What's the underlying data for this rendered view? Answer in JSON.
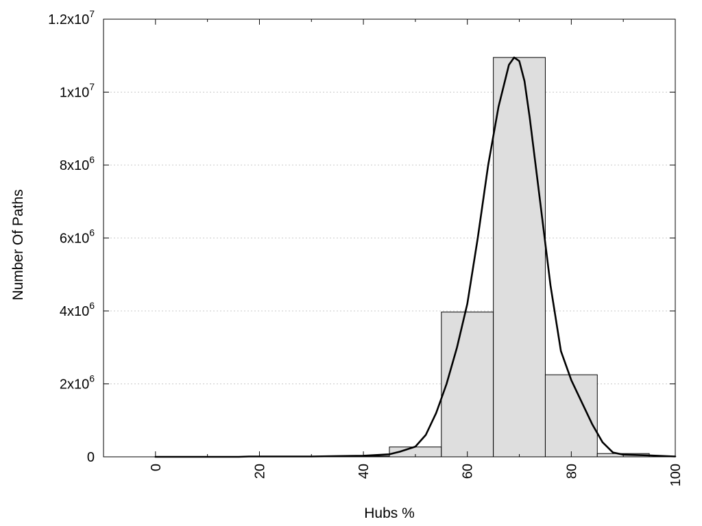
{
  "chart_data": {
    "type": "bar",
    "title": "",
    "xlabel": "Hubs %",
    "ylabel": "Number Of Paths",
    "xlim": [
      -10,
      100
    ],
    "ylim": [
      0,
      12000000
    ],
    "x_ticks": [
      0,
      20,
      40,
      60,
      80,
      100
    ],
    "y_ticks": [
      {
        "value": 0,
        "base": "0",
        "exp": ""
      },
      {
        "value": 2000000,
        "base": "2x10",
        "exp": "6"
      },
      {
        "value": 4000000,
        "base": "4x10",
        "exp": "6"
      },
      {
        "value": 6000000,
        "base": "6x10",
        "exp": "6"
      },
      {
        "value": 8000000,
        "base": "8x10",
        "exp": "6"
      },
      {
        "value": 10000000,
        "base": "1x10",
        "exp": "7"
      },
      {
        "value": 12000000,
        "base": "1.2x10",
        "exp": "7"
      }
    ],
    "grid": "horizontal dotted",
    "colors": {
      "bar_fill": "#dedede",
      "bar_stroke": "#000000",
      "curve": "#000000"
    },
    "bars": [
      {
        "start": 0,
        "end": 10,
        "value": 5000
      },
      {
        "start": 10,
        "end": 20,
        "value": 5000
      },
      {
        "start": 20,
        "end": 30,
        "value": 15000
      },
      {
        "start": 30,
        "end": 40,
        "value": 15000
      },
      {
        "start": 40,
        "end": 45,
        "value": 20000
      },
      {
        "start": 45,
        "end": 55,
        "value": 270000
      },
      {
        "start": 55,
        "end": 65,
        "value": 3970000
      },
      {
        "start": 65,
        "end": 75,
        "value": 10950000
      },
      {
        "start": 75,
        "end": 85,
        "value": 2250000
      },
      {
        "start": 85,
        "end": 95,
        "value": 90000
      }
    ],
    "curve": {
      "x": [
        0,
        10,
        16,
        18,
        20,
        30,
        35,
        40,
        45,
        47,
        50,
        52,
        54,
        56,
        58,
        60,
        62,
        64,
        66,
        68,
        69,
        70,
        71,
        72,
        74,
        76,
        78,
        80,
        82,
        84,
        86,
        88,
        90,
        95,
        100
      ],
      "y": [
        0,
        0,
        0,
        10000,
        10000,
        10000,
        20000,
        30000,
        70000,
        140000,
        280000,
        600000,
        1200000,
        2000000,
        3000000,
        4200000,
        6000000,
        8000000,
        9600000,
        10750000,
        10950000,
        10850000,
        10300000,
        9300000,
        7000000,
        4700000,
        2900000,
        2100000,
        1500000,
        900000,
        400000,
        120000,
        60000,
        40000,
        10000
      ]
    }
  }
}
